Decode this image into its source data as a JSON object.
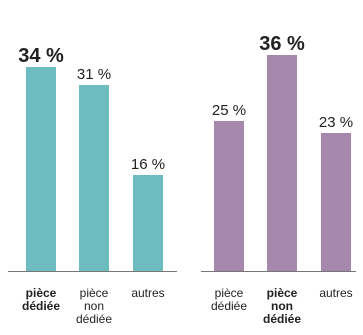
{
  "chart_data": [
    {
      "type": "bar",
      "categories": [
        [
          "pièce",
          "dédiée"
        ],
        [
          "pièce",
          "non",
          "dédiée"
        ],
        [
          "autres"
        ]
      ],
      "values": [
        34,
        31,
        16
      ],
      "value_labels": [
        "34 %",
        "31 %",
        "16 %"
      ],
      "highlight_index": 0,
      "color": "#6cbcc0",
      "ylim": [
        0,
        40
      ]
    },
    {
      "type": "bar",
      "categories": [
        [
          "pièce",
          "dédiée"
        ],
        [
          "pièce",
          "non",
          "dédiée"
        ],
        [
          "autres"
        ]
      ],
      "values": [
        25,
        36,
        23
      ],
      "value_labels": [
        "25 %",
        "36 %",
        "23 %"
      ],
      "highlight_index": 1,
      "color": "#a688ad",
      "ylim": [
        0,
        40
      ]
    }
  ],
  "colors": {
    "baseline": "#777777",
    "text": "#222222"
  }
}
